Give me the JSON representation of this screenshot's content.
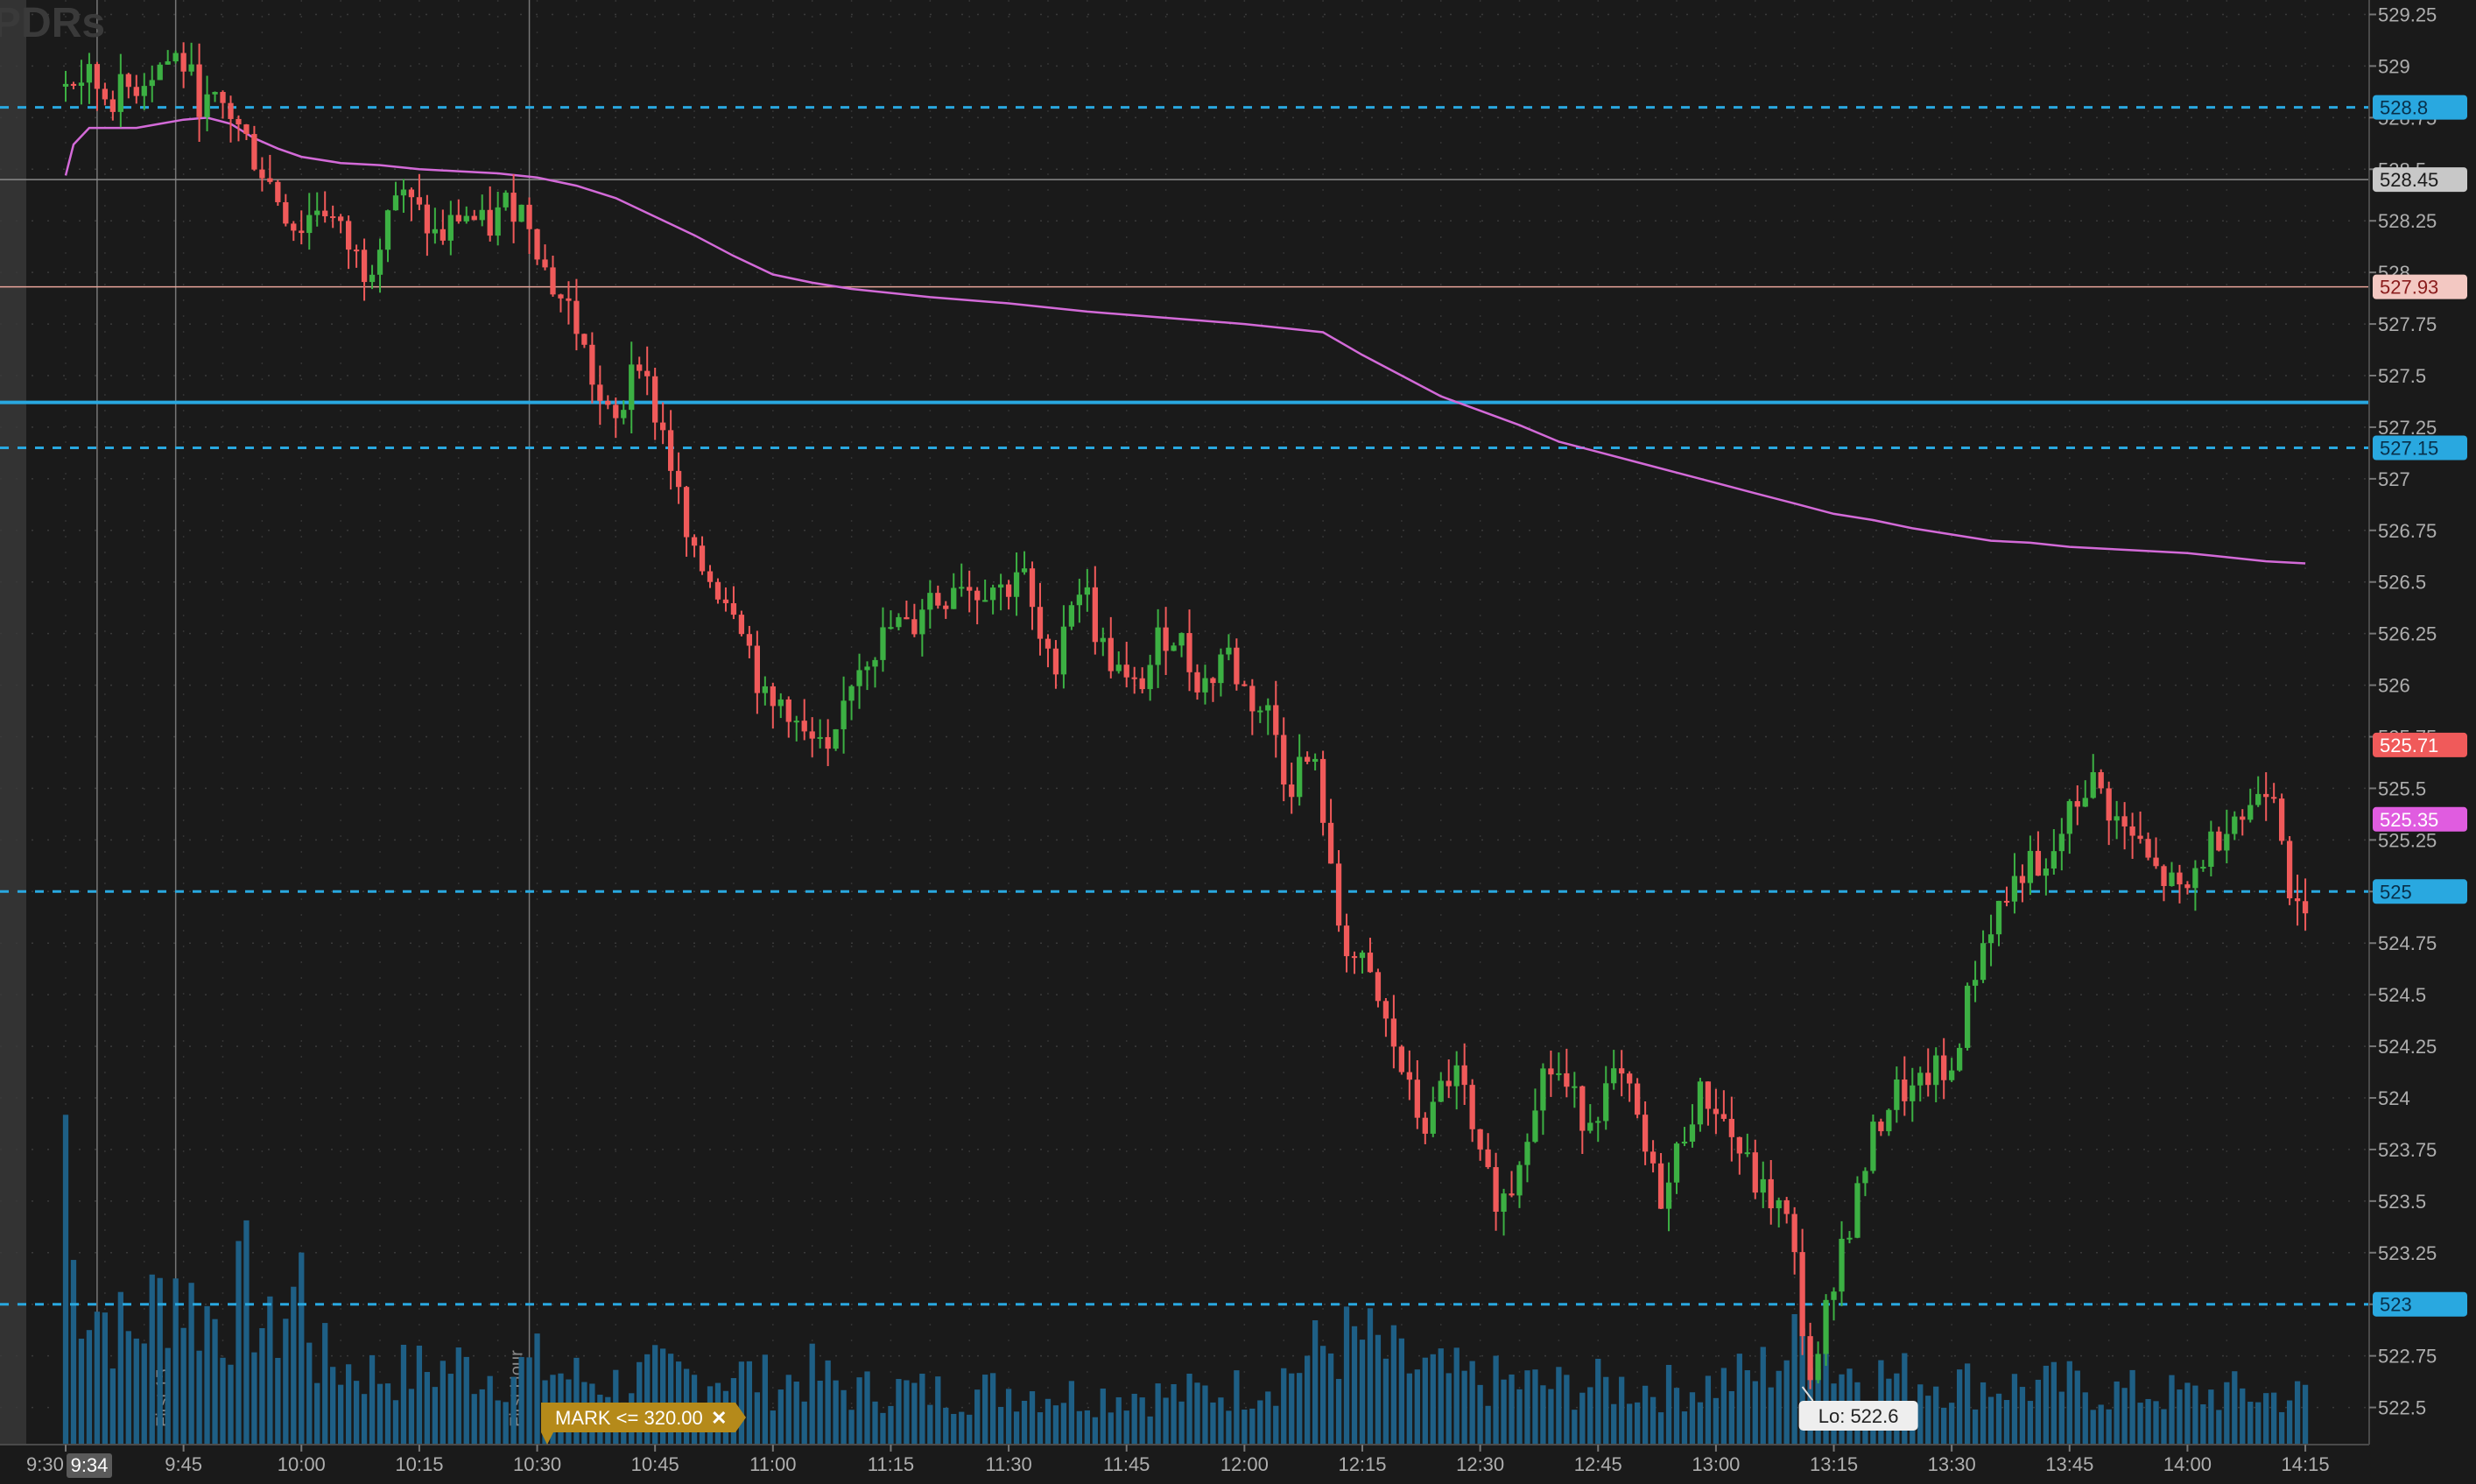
{
  "chart_data": {
    "type": "candlestick",
    "title": "",
    "watermark": "SPDRs",
    "timeframe": "1 min",
    "ylim": [
      522.32,
      529.32
    ],
    "x_ticks": [
      "9:30",
      "9:45",
      "10:00",
      "10:15",
      "10:30",
      "10:45",
      "11:00",
      "11:15",
      "11:30",
      "11:45",
      "12:00",
      "12:15",
      "12:30",
      "12:45",
      "13:00",
      "13:15",
      "13:30",
      "13:45",
      "14:00",
      "14:15"
    ],
    "x_tick_minutes": [
      0,
      15,
      30,
      45,
      60,
      75,
      90,
      105,
      120,
      135,
      150,
      165,
      180,
      195,
      210,
      225,
      240,
      255,
      270,
      285
    ],
    "y_ticks": [
      529.25,
      529,
      528.75,
      528.5,
      528.25,
      528,
      527.75,
      527.5,
      527.25,
      527,
      526.75,
      526.5,
      526.25,
      526,
      525.75,
      525.5,
      525.25,
      525,
      524.75,
      524.5,
      524.25,
      524,
      523.75,
      523.5,
      523.25,
      523,
      522.75,
      522.5
    ],
    "y_tick_labels": [
      "529.25",
      "529",
      "528.75",
      "528.5",
      "528.25",
      "528",
      "527.75",
      "527.5",
      "527.25",
      "527",
      "526.75",
      "526.5",
      "526.25",
      "526",
      "525.75",
      "525.5",
      "525.25",
      "525",
      "524.75",
      "524.5",
      "524.25",
      "524",
      "523.75",
      "523.5",
      "523.25",
      "523",
      "522.75",
      "522.5"
    ],
    "cursor_time_label": "9:34",
    "vertical_markers": [
      {
        "minute": 4,
        "label": ""
      },
      {
        "minute": 14,
        "label": "First 15"
      },
      {
        "minute": 59,
        "label": "First Hour"
      }
    ],
    "price_levels": [
      {
        "value": 528.8,
        "label": "528.8",
        "style": "dashed",
        "color": "#29a8e0"
      },
      {
        "value": 527.15,
        "label": "527.15",
        "style": "dashed",
        "color": "#29a8e0"
      },
      {
        "value": 525,
        "label": "525",
        "style": "dashed",
        "color": "#29a8e0"
      },
      {
        "value": 523,
        "label": "523",
        "style": "dashed",
        "color": "#29a8e0"
      },
      {
        "value": 527.37,
        "label": "",
        "style": "solid",
        "color": "#29a8e0"
      },
      {
        "value": 528.45,
        "label": "528.45",
        "style": "thin",
        "color": "#8a8a8a"
      },
      {
        "value": 527.93,
        "label": "527.93",
        "style": "thin",
        "color": "#e8a49a"
      }
    ],
    "last_price": {
      "value": 525.71,
      "label": "525.71",
      "color": "#f05a5a"
    },
    "vwap": {
      "value": 525.35,
      "label": "525.35",
      "color": "#e05ce0"
    },
    "low_label": {
      "text": "Lo: 522.6",
      "minute": 221,
      "value": 522.6
    },
    "alert": {
      "text": "MARK <= 320.00",
      "close": "✕"
    },
    "colors": {
      "up": "#3cb043",
      "down": "#f05a5a",
      "volume": "#1e5f85",
      "vwap_line": "#d36ad8",
      "background": "#1a1a1a",
      "grid": "#3a3a3a"
    },
    "vwap_series": [
      [
        0,
        528.47
      ],
      [
        1,
        528.62
      ],
      [
        3,
        528.7
      ],
      [
        6,
        528.7
      ],
      [
        9,
        528.7
      ],
      [
        12,
        528.72
      ],
      [
        15,
        528.74
      ],
      [
        18,
        528.75
      ],
      [
        21,
        528.72
      ],
      [
        24,
        528.65
      ],
      [
        27,
        528.6
      ],
      [
        30,
        528.56
      ],
      [
        35,
        528.53
      ],
      [
        40,
        528.52
      ],
      [
        45,
        528.5
      ],
      [
        50,
        528.49
      ],
      [
        55,
        528.48
      ],
      [
        60,
        528.46
      ],
      [
        65,
        528.42
      ],
      [
        70,
        528.36
      ],
      [
        75,
        528.27
      ],
      [
        80,
        528.18
      ],
      [
        85,
        528.08
      ],
      [
        90,
        527.99
      ],
      [
        95,
        527.95
      ],
      [
        100,
        527.92
      ],
      [
        110,
        527.88
      ],
      [
        120,
        527.85
      ],
      [
        130,
        527.81
      ],
      [
        140,
        527.78
      ],
      [
        150,
        527.75
      ],
      [
        155,
        527.73
      ],
      [
        160,
        527.71
      ],
      [
        165,
        527.6
      ],
      [
        170,
        527.5
      ],
      [
        175,
        527.4
      ],
      [
        180,
        527.33
      ],
      [
        185,
        527.26
      ],
      [
        190,
        527.18
      ],
      [
        195,
        527.13
      ],
      [
        200,
        527.08
      ],
      [
        205,
        527.03
      ],
      [
        210,
        526.98
      ],
      [
        215,
        526.93
      ],
      [
        220,
        526.88
      ],
      [
        225,
        526.83
      ],
      [
        230,
        526.8
      ],
      [
        235,
        526.76
      ],
      [
        240,
        526.73
      ],
      [
        245,
        526.7
      ],
      [
        250,
        526.69
      ],
      [
        255,
        526.67
      ],
      [
        260,
        526.66
      ],
      [
        265,
        526.65
      ],
      [
        270,
        526.64
      ],
      [
        275,
        526.62
      ],
      [
        280,
        526.6
      ],
      [
        285,
        526.59
      ]
    ],
    "candle_path": [
      [
        0,
        528.9
      ],
      [
        3,
        528.95
      ],
      [
        6,
        528.85
      ],
      [
        9,
        528.9
      ],
      [
        12,
        529.0
      ],
      [
        15,
        529.05
      ],
      [
        18,
        528.8
      ],
      [
        21,
        528.8
      ],
      [
        24,
        528.6
      ],
      [
        27,
        528.4
      ],
      [
        30,
        528.2
      ],
      [
        33,
        528.35
      ],
      [
        36,
        528.15
      ],
      [
        39,
        528.0
      ],
      [
        42,
        528.4
      ],
      [
        45,
        528.3
      ],
      [
        48,
        528.15
      ],
      [
        51,
        528.3
      ],
      [
        54,
        528.2
      ],
      [
        57,
        528.35
      ],
      [
        60,
        528.25
      ],
      [
        61,
        528.05
      ],
      [
        63,
        527.9
      ],
      [
        65,
        527.8
      ],
      [
        67,
        527.55
      ],
      [
        69,
        527.3
      ],
      [
        71,
        527.25
      ],
      [
        73,
        527.7
      ],
      [
        75,
        527.35
      ],
      [
        76,
        527.3
      ],
      [
        78,
        527.0
      ],
      [
        80,
        526.6
      ],
      [
        82,
        526.55
      ],
      [
        84,
        526.45
      ],
      [
        86,
        526.4
      ],
      [
        88,
        526.1
      ],
      [
        90,
        525.85
      ],
      [
        92,
        525.95
      ],
      [
        94,
        525.75
      ],
      [
        96,
        525.7
      ],
      [
        98,
        525.6
      ],
      [
        100,
        526.0
      ],
      [
        102,
        526.15
      ],
      [
        104,
        526.2
      ],
      [
        106,
        526.3
      ],
      [
        108,
        526.25
      ],
      [
        110,
        526.45
      ],
      [
        112,
        526.4
      ],
      [
        114,
        526.55
      ],
      [
        116,
        526.45
      ],
      [
        118,
        526.5
      ],
      [
        120,
        526.45
      ],
      [
        122,
        526.6
      ],
      [
        124,
        526.25
      ],
      [
        126,
        526.05
      ],
      [
        128,
        526.4
      ],
      [
        130,
        526.5
      ],
      [
        132,
        526.2
      ],
      [
        134,
        526.1
      ],
      [
        136,
        525.95
      ],
      [
        138,
        526.05
      ],
      [
        140,
        526.25
      ],
      [
        142,
        526.25
      ],
      [
        144,
        526.05
      ],
      [
        146,
        526.0
      ],
      [
        148,
        526.2
      ],
      [
        150,
        526.0
      ],
      [
        152,
        525.9
      ],
      [
        154,
        525.85
      ],
      [
        156,
        525.5
      ],
      [
        158,
        525.65
      ],
      [
        160,
        525.55
      ],
      [
        162,
        524.9
      ],
      [
        164,
        524.7
      ],
      [
        166,
        524.6
      ],
      [
        168,
        524.4
      ],
      [
        170,
        524.2
      ],
      [
        172,
        523.95
      ],
      [
        174,
        523.85
      ],
      [
        176,
        524.1
      ],
      [
        178,
        524.1
      ],
      [
        180,
        523.7
      ],
      [
        182,
        523.55
      ],
      [
        184,
        523.5
      ],
      [
        186,
        523.8
      ],
      [
        188,
        524.1
      ],
      [
        190,
        524.15
      ],
      [
        192,
        524.0
      ],
      [
        194,
        523.9
      ],
      [
        196,
        524.0
      ],
      [
        198,
        524.1
      ],
      [
        200,
        523.95
      ],
      [
        202,
        523.65
      ],
      [
        204,
        523.5
      ],
      [
        206,
        523.8
      ],
      [
        208,
        524.0
      ],
      [
        210,
        524.0
      ],
      [
        212,
        523.85
      ],
      [
        214,
        523.7
      ],
      [
        216,
        523.55
      ],
      [
        218,
        523.5
      ],
      [
        220,
        523.35
      ],
      [
        222,
        522.75
      ],
      [
        223,
        522.55
      ],
      [
        224,
        522.85
      ],
      [
        226,
        523.25
      ],
      [
        228,
        523.45
      ],
      [
        230,
        523.75
      ],
      [
        232,
        523.95
      ],
      [
        234,
        524.05
      ],
      [
        236,
        524.0
      ],
      [
        238,
        524.15
      ],
      [
        240,
        524.05
      ],
      [
        242,
        524.4
      ],
      [
        244,
        524.7
      ],
      [
        246,
        524.9
      ],
      [
        248,
        525.0
      ],
      [
        250,
        525.15
      ],
      [
        252,
        525.0
      ],
      [
        254,
        525.25
      ],
      [
        256,
        525.4
      ],
      [
        258,
        525.55
      ],
      [
        260,
        525.45
      ],
      [
        262,
        525.3
      ],
      [
        264,
        525.25
      ],
      [
        266,
        525.1
      ],
      [
        268,
        525.05
      ],
      [
        270,
        524.95
      ],
      [
        272,
        525.15
      ],
      [
        274,
        525.25
      ],
      [
        276,
        525.4
      ],
      [
        278,
        525.35
      ],
      [
        280,
        525.55
      ],
      [
        282,
        525.5
      ],
      [
        283,
        525.15
      ],
      [
        284,
        524.9
      ],
      [
        285,
        524.85
      ]
    ],
    "volume_profile": [
      [
        0,
        190
      ],
      [
        1,
        100
      ],
      [
        3,
        85
      ],
      [
        5,
        75
      ],
      [
        8,
        60
      ],
      [
        14,
        95
      ],
      [
        16,
        80
      ],
      [
        20,
        70
      ],
      [
        23,
        90
      ],
      [
        26,
        60
      ],
      [
        30,
        95
      ],
      [
        32,
        50
      ],
      [
        35,
        45
      ],
      [
        40,
        40
      ],
      [
        45,
        42
      ],
      [
        50,
        45
      ],
      [
        55,
        40
      ],
      [
        60,
        45
      ],
      [
        65,
        38
      ],
      [
        70,
        35
      ],
      [
        75,
        40
      ],
      [
        80,
        38
      ],
      [
        85,
        42
      ],
      [
        90,
        35
      ],
      [
        95,
        40
      ],
      [
        100,
        30
      ],
      [
        105,
        32
      ],
      [
        110,
        30
      ],
      [
        115,
        30
      ],
      [
        120,
        32
      ],
      [
        125,
        30
      ],
      [
        130,
        28
      ],
      [
        135,
        30
      ],
      [
        140,
        28
      ],
      [
        145,
        30
      ],
      [
        150,
        32
      ],
      [
        155,
        40
      ],
      [
        160,
        55
      ],
      [
        165,
        60
      ],
      [
        170,
        45
      ],
      [
        175,
        40
      ],
      [
        180,
        36
      ],
      [
        185,
        35
      ],
      [
        190,
        33
      ],
      [
        195,
        34
      ],
      [
        200,
        33
      ],
      [
        205,
        32
      ],
      [
        210,
        35
      ],
      [
        215,
        40
      ],
      [
        220,
        55
      ],
      [
        222,
        70
      ],
      [
        225,
        45
      ],
      [
        230,
        40
      ],
      [
        235,
        38
      ],
      [
        240,
        36
      ],
      [
        245,
        34
      ],
      [
        250,
        33
      ],
      [
        255,
        34
      ],
      [
        260,
        30
      ],
      [
        265,
        30
      ],
      [
        270,
        28
      ],
      [
        275,
        30
      ],
      [
        280,
        28
      ],
      [
        285,
        28
      ]
    ]
  }
}
